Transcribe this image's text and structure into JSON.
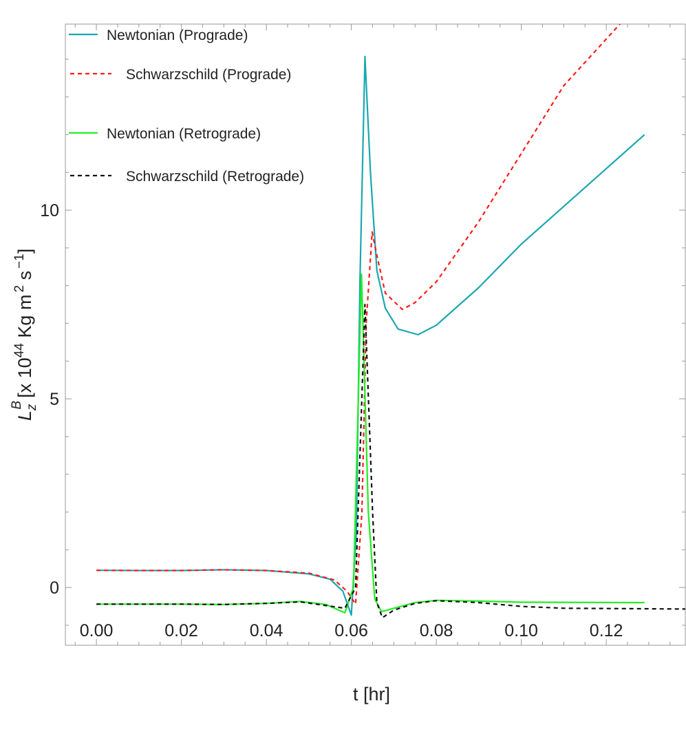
{
  "chart_data": {
    "type": "line",
    "xlabel": "t [hr]",
    "ylabel": {
      "symbol": "L",
      "sub": "z",
      "sup": "B",
      "unit_prefix": "[x 10",
      "exp": "44",
      "unit_mid": " Kg m",
      "m_exp": "2",
      "unit_s": " s",
      "s_exp": "−1",
      "close": "]"
    },
    "xlim": [
      -0.0073,
      0.1386
    ],
    "ylim": [
      -1.53,
      14.93
    ],
    "x_ticks": [
      0.0,
      0.02,
      0.04,
      0.06,
      0.08,
      0.1,
      0.12
    ],
    "x_tick_labels": [
      "0.00",
      "0.02",
      "0.04",
      "0.06",
      "0.08",
      "0.10",
      "0.12"
    ],
    "y_ticks": [
      0,
      5,
      10
    ],
    "y_tick_labels": [
      "0",
      "5",
      "10"
    ],
    "grid": false,
    "legend_position": "top-left",
    "series": [
      {
        "name": "Newtonian (Prograde)",
        "color": "#1aa7b0",
        "dash": "solid",
        "points": [
          [
            0,
            0.456
          ],
          [
            0.01,
            0.45
          ],
          [
            0.02,
            0.45
          ],
          [
            0.03,
            0.47
          ],
          [
            0.04,
            0.45
          ],
          [
            0.05,
            0.36
          ],
          [
            0.055,
            0.22
          ],
          [
            0.058,
            -0.1
          ],
          [
            0.06,
            -0.73
          ],
          [
            0.0612,
            1.5
          ],
          [
            0.062,
            8.0
          ],
          [
            0.0632,
            14.07
          ],
          [
            0.0645,
            11.0
          ],
          [
            0.066,
            8.4
          ],
          [
            0.068,
            7.4
          ],
          [
            0.071,
            6.85
          ],
          [
            0.0757,
            6.7
          ],
          [
            0.08,
            6.95
          ],
          [
            0.09,
            7.95
          ],
          [
            0.1,
            9.1
          ],
          [
            0.11,
            10.1
          ],
          [
            0.12,
            11.1
          ],
          [
            0.129,
            12.0
          ]
        ]
      },
      {
        "name": "Schwarzschild (Prograde)",
        "color": "#ff1a1a",
        "dash": "dashed",
        "points": [
          [
            0,
            0.456
          ],
          [
            0.01,
            0.45
          ],
          [
            0.02,
            0.45
          ],
          [
            0.03,
            0.47
          ],
          [
            0.04,
            0.45
          ],
          [
            0.05,
            0.38
          ],
          [
            0.056,
            0.2
          ],
          [
            0.059,
            -0.1
          ],
          [
            0.061,
            -0.44
          ],
          [
            0.0625,
            2.0
          ],
          [
            0.0635,
            7.0
          ],
          [
            0.0649,
            9.42
          ],
          [
            0.066,
            8.8
          ],
          [
            0.068,
            7.8
          ],
          [
            0.072,
            7.37
          ],
          [
            0.075,
            7.55
          ],
          [
            0.08,
            8.1
          ],
          [
            0.09,
            9.7
          ],
          [
            0.1,
            11.5
          ],
          [
            0.11,
            13.3
          ],
          [
            0.1232,
            14.93
          ],
          [
            0.126,
            15.4
          ]
        ]
      },
      {
        "name": "Newtonian (Retrograde)",
        "color": "#22ee22",
        "dash": "solid",
        "points": [
          [
            0,
            -0.44
          ],
          [
            0.02,
            -0.44
          ],
          [
            0.03,
            -0.45
          ],
          [
            0.04,
            -0.42
          ],
          [
            0.048,
            -0.37
          ],
          [
            0.054,
            -0.45
          ],
          [
            0.0585,
            -0.67
          ],
          [
            0.0605,
            0.0
          ],
          [
            0.0624,
            8.3
          ],
          [
            0.064,
            2.0
          ],
          [
            0.0655,
            -0.3
          ],
          [
            0.0671,
            -0.64
          ],
          [
            0.07,
            -0.55
          ],
          [
            0.075,
            -0.4
          ],
          [
            0.08,
            -0.34
          ],
          [
            0.09,
            -0.36
          ],
          [
            0.1,
            -0.39
          ],
          [
            0.129,
            -0.4
          ]
        ]
      },
      {
        "name": "Schwarzschild (Retrograde)",
        "color": "#111111",
        "dash": "dashed",
        "points": [
          [
            0,
            -0.44
          ],
          [
            0.02,
            -0.44
          ],
          [
            0.03,
            -0.45
          ],
          [
            0.04,
            -0.42
          ],
          [
            0.048,
            -0.38
          ],
          [
            0.0585,
            -0.55
          ],
          [
            0.061,
            0.0
          ],
          [
            0.0632,
            7.5
          ],
          [
            0.065,
            2.0
          ],
          [
            0.066,
            -0.4
          ],
          [
            0.0673,
            -0.8
          ],
          [
            0.07,
            -0.6
          ],
          [
            0.075,
            -0.42
          ],
          [
            0.08,
            -0.35
          ],
          [
            0.09,
            -0.4
          ],
          [
            0.1,
            -0.5
          ],
          [
            0.11,
            -0.55
          ],
          [
            0.1386,
            -0.57
          ]
        ]
      }
    ]
  }
}
